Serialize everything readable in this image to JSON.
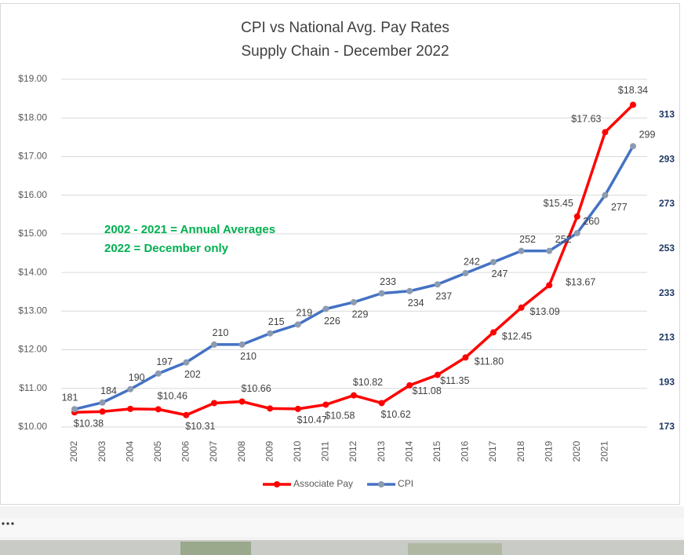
{
  "chart_data": {
    "type": "line",
    "title": "CPI vs National Avg. Pay Rates",
    "subtitle": "Supply Chain - December 2022",
    "annotations": [
      "2002 - 2021 = Annual Averages",
      "2022 = December only"
    ],
    "categories": [
      "2002",
      "2003",
      "2004",
      "2005",
      "2006",
      "2007",
      "2008",
      "2009",
      "2010",
      "2011",
      "2012",
      "2013",
      "2014",
      "2015",
      "2016",
      "2017",
      "2018",
      "2019",
      "2020",
      "2021",
      null
    ],
    "series": [
      {
        "name": "Associate Pay",
        "color": "#ff0000",
        "values": [
          10.38,
          10.4,
          10.47,
          10.46,
          10.31,
          10.62,
          10.66,
          10.48,
          10.47,
          10.58,
          10.82,
          10.62,
          11.08,
          11.35,
          11.8,
          12.45,
          13.09,
          13.67,
          15.45,
          17.63,
          18.34
        ],
        "value_labels": [
          "$10.38",
          null,
          null,
          "$10.46",
          "$10.31",
          null,
          "$10.66",
          null,
          "$10.47",
          "$10.58",
          "$10.82",
          "$10.62",
          "$11.08",
          "$11.35",
          "$11.80",
          "$12.45",
          "$13.09",
          "$13.67",
          "$15.45",
          "$17.63",
          "$18.34"
        ]
      },
      {
        "name": "CPI",
        "color": "#4472c4",
        "axis": "y2",
        "values": [
          181,
          184,
          190,
          197,
          202,
          210,
          210,
          215,
          219,
          226,
          229,
          233,
          234,
          237,
          242,
          247,
          252,
          252,
          260,
          277,
          299
        ]
      }
    ],
    "ylim": [
      10,
      19
    ],
    "yticks": [
      {
        "value": 10,
        "label": "$10.00"
      },
      {
        "value": 11,
        "label": "$11.00"
      },
      {
        "value": 12,
        "label": "$12.00"
      },
      {
        "value": 13,
        "label": "$13.00"
      },
      {
        "value": 14,
        "label": "$14.00"
      },
      {
        "value": 15,
        "label": "$15.00"
      },
      {
        "value": 16,
        "label": "$16.00"
      },
      {
        "value": 17,
        "label": "$17.00"
      },
      {
        "value": 18,
        "label": "$18.00"
      },
      {
        "value": 19,
        "label": "$19.00"
      }
    ],
    "y2lim": [
      173,
      329
    ],
    "y2ticks": [
      173,
      193,
      213,
      233,
      253,
      273,
      293,
      313
    ],
    "grid": true,
    "legend": "bottom"
  }
}
